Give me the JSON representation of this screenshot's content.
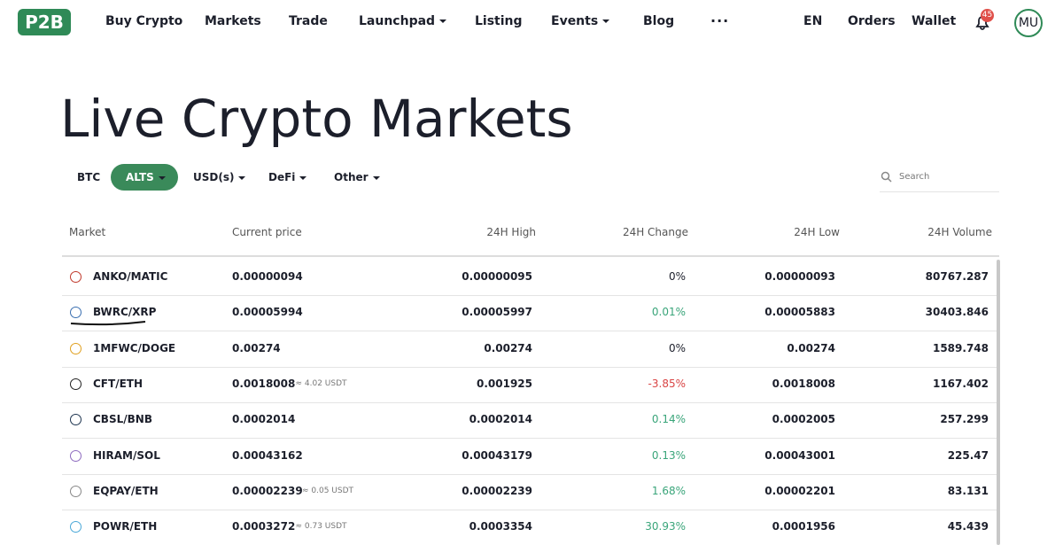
{
  "nav": {
    "logo": "P2B",
    "items": [
      "Buy Crypto",
      "Markets",
      "Trade",
      "Launchpad",
      "Listing",
      "Events",
      "Blog"
    ],
    "language": "EN",
    "orders": "Orders",
    "wallet": "Wallet",
    "notifications": "45",
    "avatar": "MU"
  },
  "page": {
    "title": "Live Crypto Markets",
    "tabs": [
      "BTC",
      "ALTS",
      "USD(s)",
      "DeFi",
      "Other"
    ],
    "search_placeholder": "Search"
  },
  "table": {
    "headers": [
      "Market",
      "Current price",
      "24H High",
      "24H Change",
      "24H Low",
      "24H Volume"
    ],
    "rows": [
      {
        "market": "ANKO/MATIC",
        "price": "0.00000094",
        "high": "0.00000095",
        "change": "0%",
        "low": "0.00000093",
        "volume": "80767.287"
      },
      {
        "market": "BWRC/XRP",
        "price": "0.00005994",
        "high": "0.00005997",
        "change": "0.01%",
        "low": "0.00005883",
        "volume": "30403.846"
      },
      {
        "market": "1MFWC/DOGE",
        "price": "0.00274",
        "high": "0.00274",
        "change": "0%",
        "low": "0.00274",
        "volume": "1589.748"
      },
      {
        "market": "CFT/ETH",
        "price": "0.0018008",
        "approx": "≈ 4.02 USDT",
        "high": "0.001925",
        "change": "-3.85%",
        "low": "0.0018008",
        "volume": "1167.402"
      },
      {
        "market": "CBSL/BNB",
        "price": "0.0002014",
        "high": "0.0002014",
        "change": "0.14%",
        "low": "0.0002005",
        "volume": "257.299"
      },
      {
        "market": "HIRAM/SOL",
        "price": "0.00043162",
        "high": "0.00043179",
        "change": "0.13%",
        "low": "0.00043001",
        "volume": "225.47"
      },
      {
        "market": "EQPAY/ETH",
        "price": "0.00002239",
        "approx": "≈ 0.05 USDT",
        "high": "0.00002239",
        "change": "1.68%",
        "low": "0.00002201",
        "volume": "83.131"
      },
      {
        "market": "POWR/ETH",
        "price": "0.0003272",
        "approx": "≈ 0.73 USDT",
        "high": "0.0003354",
        "change": "30.93%",
        "low": "0.0001956",
        "volume": "45.439"
      }
    ]
  }
}
